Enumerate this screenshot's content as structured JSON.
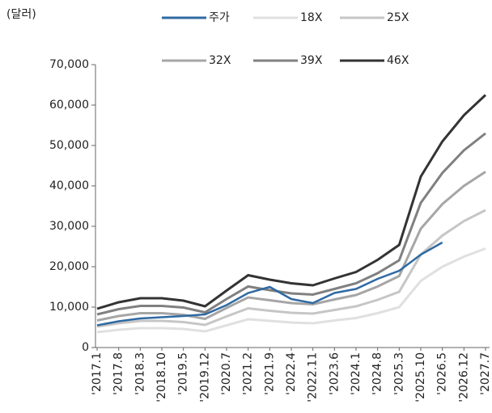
{
  "chart_data": {
    "type": "line",
    "y_label": "(달러)",
    "categories": [
      "'2017.1",
      "'2017.8",
      "'2018.3",
      "'2018.10",
      "'2019.5",
      "'2019.12",
      "'2020.7",
      "'2021.2",
      "'2021.9",
      "'2022.4",
      "'2022.11",
      "'2023.6",
      "'2024.1",
      "'2024.8",
      "'2025.3",
      "'2025.10",
      "'2026.5",
      "'2026.12",
      "'2027.7"
    ],
    "series": [
      {
        "name": "주가",
        "color": "#2f6aa3",
        "values": [
          5500,
          6500,
          7200,
          7500,
          7800,
          8200,
          10500,
          13500,
          15000,
          12000,
          11000,
          13500,
          14500,
          17000,
          19000,
          23000,
          26000,
          null,
          null
        ]
      },
      {
        "name": "18X",
        "color": "#e0e0e0",
        "values": [
          3800,
          4400,
          4800,
          4800,
          4600,
          4000,
          5500,
          7000,
          6600,
          6200,
          6000,
          6700,
          7300,
          8500,
          10000,
          16500,
          20000,
          22500,
          24500
        ]
      },
      {
        "name": "25X",
        "color": "#c6c6c6",
        "values": [
          5200,
          6000,
          6600,
          6600,
          6300,
          5600,
          7700,
          9700,
          9100,
          8600,
          8400,
          9300,
          10200,
          11800,
          13800,
          23000,
          27700,
          31300,
          34000
        ]
      },
      {
        "name": "32X",
        "color": "#a6a6a6",
        "values": [
          6700,
          7800,
          8500,
          8500,
          8100,
          7100,
          9800,
          12400,
          11700,
          11000,
          10700,
          11900,
          13000,
          15100,
          17700,
          29400,
          35500,
          40000,
          43500
        ]
      },
      {
        "name": "39X",
        "color": "#808080",
        "values": [
          8200,
          9500,
          10300,
          10300,
          9900,
          8700,
          12000,
          15100,
          14200,
          13400,
          13100,
          14500,
          15900,
          18400,
          21600,
          35800,
          43200,
          48800,
          53000
        ]
      },
      {
        "name": "46X",
        "color": "#333333",
        "values": [
          9600,
          11200,
          12200,
          12200,
          11600,
          10200,
          14100,
          17900,
          16800,
          15900,
          15400,
          17100,
          18700,
          21700,
          25400,
          42300,
          51000,
          57500,
          62500
        ]
      }
    ],
    "ylim": [
      0,
      70000
    ],
    "yticks": [
      0,
      {
        "value": 10000,
        "label": "10,000"
      },
      {
        "value": 20000,
        "label": "20,000"
      },
      {
        "value": 30000,
        "label": "30,000"
      },
      {
        "value": 40000,
        "label": "40,000"
      },
      {
        "value": 50000,
        "label": "50,000"
      },
      {
        "value": 60000,
        "label": "60,000"
      },
      {
        "value": 70000,
        "label": "70,000"
      }
    ],
    "grid": false
  }
}
